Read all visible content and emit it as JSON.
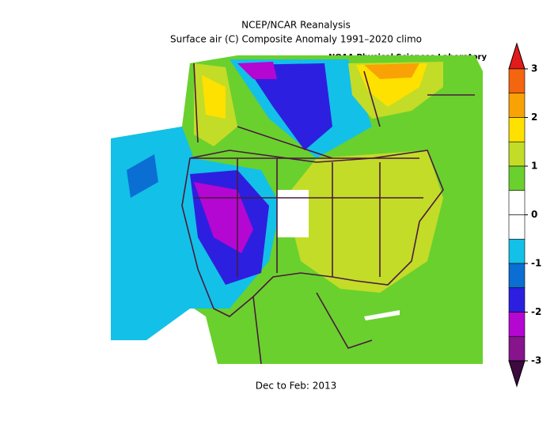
{
  "header": {
    "title": "NCEP/NCAR Reanalysis",
    "subtitle": "Surface air (C) Composite Anomaly 1991–2020 climo",
    "credit": "NOAA Physical Sciences Laboratory"
  },
  "footer": {
    "period": "Dec to Feb: 2013"
  },
  "colorbar": {
    "ticks": [
      3,
      2,
      1,
      0,
      -1,
      -2,
      -3
    ],
    "colors": [
      "#e31a1c",
      "#f4650f",
      "#f9a205",
      "#ffe100",
      "#c3dc28",
      "#6ad02e",
      "#ffffff",
      "#ffffff",
      "#13c0e8",
      "#0a6ed2",
      "#2d1fe0",
      "#b407d2",
      "#87148c",
      "#3c0a3c"
    ]
  }
}
